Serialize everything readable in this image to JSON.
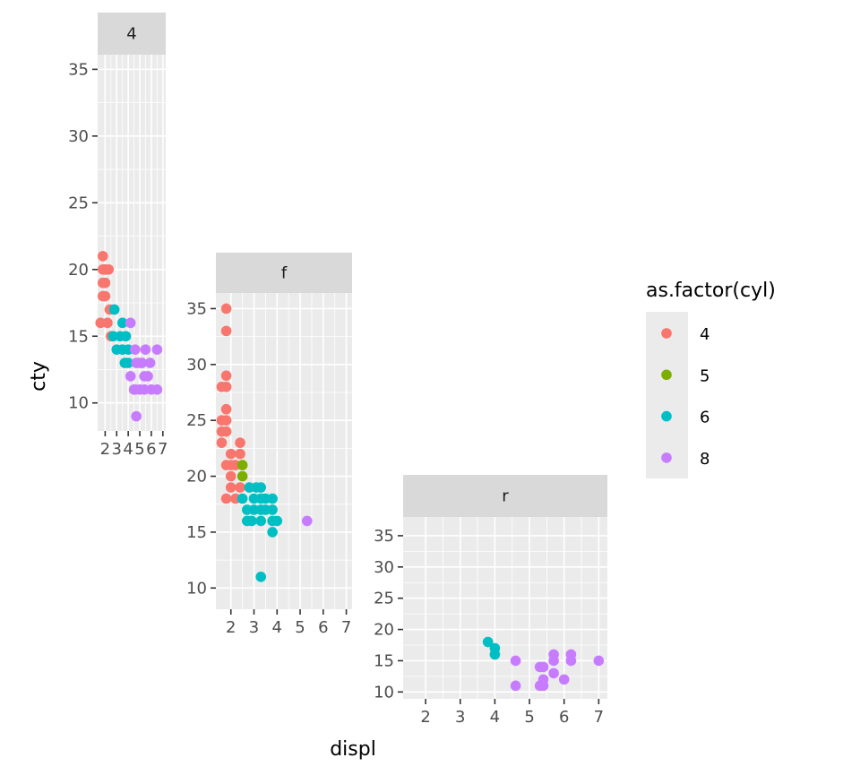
{
  "chart_data": {
    "type": "scatter",
    "xlabel": "displ",
    "ylabel": "cty",
    "legend": {
      "title": "as.factor(cyl)",
      "position": "right",
      "entries": [
        {
          "label": "4",
          "color": "#F8766D"
        },
        {
          "label": "5",
          "color": "#7CAE00"
        },
        {
          "label": "6",
          "color": "#00BFC4"
        },
        {
          "label": "8",
          "color": "#C77CFF"
        }
      ]
    },
    "panels": [
      {
        "strip": "4",
        "xlim": [
          1.35,
          7.25
        ],
        "ylim": [
          7.9,
          36.1
        ],
        "x_ticks": [
          2,
          3,
          4,
          5,
          6,
          7
        ],
        "x_tick_labels": [
          "2",
          "3",
          "4",
          "5",
          "6",
          "7"
        ],
        "y_ticks": [
          10,
          15,
          20,
          25,
          30,
          35
        ],
        "y_tick_labels": [
          "10",
          "15",
          "20",
          "25",
          "30",
          "35"
        ],
        "points": [
          [
            1.8,
            18,
            "4"
          ],
          [
            1.8,
            21,
            "4"
          ],
          [
            2.0,
            20,
            "4"
          ],
          [
            2.0,
            19,
            "4"
          ],
          [
            2.0,
            20,
            "4"
          ],
          [
            1.8,
            19,
            "4"
          ],
          [
            1.8,
            20,
            "4"
          ],
          [
            2.0,
            19,
            "4"
          ],
          [
            2.0,
            18,
            "4"
          ],
          [
            1.6,
            16,
            "4"
          ],
          [
            2.4,
            17,
            "4"
          ],
          [
            2.2,
            16,
            "4"
          ],
          [
            2.5,
            15,
            "4"
          ],
          [
            2.3,
            20,
            "4"
          ],
          [
            2.0,
            20,
            "4"
          ],
          [
            2.8,
            17,
            "6"
          ],
          [
            2.7,
            15,
            "6"
          ],
          [
            3.0,
            14,
            "6"
          ],
          [
            3.3,
            15,
            "6"
          ],
          [
            3.5,
            14,
            "6"
          ],
          [
            3.7,
            13,
            "6"
          ],
          [
            4.0,
            14,
            "6"
          ],
          [
            3.5,
            16,
            "6"
          ],
          [
            3.8,
            15,
            "6"
          ],
          [
            4.0,
            13,
            "6"
          ],
          [
            4.2,
            16,
            "8"
          ],
          [
            4.6,
            14,
            "8"
          ],
          [
            4.7,
            13,
            "8"
          ],
          [
            5.0,
            13,
            "8"
          ],
          [
            5.4,
            12,
            "8"
          ],
          [
            4.2,
            12,
            "8"
          ],
          [
            4.6,
            11,
            "8"
          ],
          [
            5.0,
            11,
            "8"
          ],
          [
            5.4,
            11,
            "8"
          ],
          [
            6.0,
            11,
            "8"
          ],
          [
            6.5,
            11,
            "8"
          ],
          [
            5.7,
            12,
            "8"
          ],
          [
            5.2,
            13,
            "8"
          ],
          [
            5.9,
            13,
            "8"
          ],
          [
            4.5,
            11,
            "8"
          ],
          [
            4.7,
            9,
            "8"
          ],
          [
            6.5,
            14,
            "8"
          ],
          [
            5.5,
            14,
            "8"
          ]
        ]
      },
      {
        "strip": "f",
        "xlim": [
          1.35,
          7.25
        ],
        "ylim": [
          8.1,
          36.4
        ],
        "x_ticks": [
          2,
          3,
          4,
          5,
          6,
          7
        ],
        "x_tick_labels": [
          "2",
          "3",
          "4",
          "5",
          "6",
          "7"
        ],
        "y_ticks": [
          10,
          15,
          20,
          25,
          30,
          35
        ],
        "y_tick_labels": [
          "10",
          "15",
          "20",
          "25",
          "30",
          "35"
        ],
        "points": [
          [
            1.8,
            35,
            "4"
          ],
          [
            1.8,
            33,
            "4"
          ],
          [
            1.8,
            29,
            "4"
          ],
          [
            1.6,
            28,
            "4"
          ],
          [
            1.8,
            28,
            "4"
          ],
          [
            1.8,
            26,
            "4"
          ],
          [
            1.6,
            25,
            "4"
          ],
          [
            1.8,
            25,
            "4"
          ],
          [
            1.6,
            24,
            "4"
          ],
          [
            1.8,
            24,
            "4"
          ],
          [
            1.6,
            23,
            "4"
          ],
          [
            2.4,
            23,
            "4"
          ],
          [
            2.0,
            22,
            "4"
          ],
          [
            2.4,
            22,
            "4"
          ],
          [
            1.8,
            21,
            "4"
          ],
          [
            2.0,
            21,
            "4"
          ],
          [
            2.2,
            21,
            "4"
          ],
          [
            2.0,
            20,
            "4"
          ],
          [
            2.0,
            19,
            "4"
          ],
          [
            2.4,
            19,
            "4"
          ],
          [
            1.8,
            18,
            "4"
          ],
          [
            2.2,
            18,
            "4"
          ],
          [
            2.5,
            21,
            "5"
          ],
          [
            2.5,
            20,
            "5"
          ],
          [
            2.5,
            18,
            "6"
          ],
          [
            2.8,
            19,
            "6"
          ],
          [
            3.1,
            19,
            "6"
          ],
          [
            3.3,
            19,
            "6"
          ],
          [
            3.0,
            18,
            "6"
          ],
          [
            3.3,
            18,
            "6"
          ],
          [
            3.5,
            18,
            "6"
          ],
          [
            3.8,
            18,
            "6"
          ],
          [
            2.7,
            17,
            "6"
          ],
          [
            3.0,
            17,
            "6"
          ],
          [
            3.3,
            17,
            "6"
          ],
          [
            3.5,
            17,
            "6"
          ],
          [
            3.8,
            17,
            "6"
          ],
          [
            2.7,
            16,
            "6"
          ],
          [
            2.9,
            16,
            "6"
          ],
          [
            3.3,
            16,
            "6"
          ],
          [
            3.8,
            16,
            "6"
          ],
          [
            4.0,
            16,
            "6"
          ],
          [
            3.8,
            15,
            "6"
          ],
          [
            3.3,
            11,
            "6"
          ],
          [
            5.3,
            16,
            "8"
          ]
        ]
      },
      {
        "strip": "r",
        "xlim": [
          1.35,
          7.25
        ],
        "ylim": [
          8.9,
          38.0
        ],
        "x_ticks": [
          2,
          3,
          4,
          5,
          6,
          7
        ],
        "x_tick_labels": [
          "2",
          "3",
          "4",
          "5",
          "6",
          "7"
        ],
        "y_ticks": [
          10,
          15,
          20,
          25,
          30,
          35
        ],
        "y_tick_labels": [
          "10",
          "15",
          "20",
          "25",
          "30",
          "35"
        ],
        "points": [
          [
            3.8,
            18,
            "6"
          ],
          [
            4.0,
            17,
            "6"
          ],
          [
            4.0,
            16,
            "6"
          ],
          [
            4.6,
            15,
            "8"
          ],
          [
            4.6,
            11,
            "8"
          ],
          [
            5.4,
            14,
            "8"
          ],
          [
            5.3,
            14,
            "8"
          ],
          [
            5.4,
            12,
            "8"
          ],
          [
            5.4,
            11,
            "8"
          ],
          [
            5.3,
            11,
            "8"
          ],
          [
            5.7,
            16,
            "8"
          ],
          [
            5.7,
            15,
            "8"
          ],
          [
            5.7,
            13,
            "8"
          ],
          [
            6.0,
            12,
            "8"
          ],
          [
            6.2,
            16,
            "8"
          ],
          [
            6.2,
            15,
            "8"
          ],
          [
            7.0,
            15,
            "8"
          ]
        ]
      }
    ]
  }
}
